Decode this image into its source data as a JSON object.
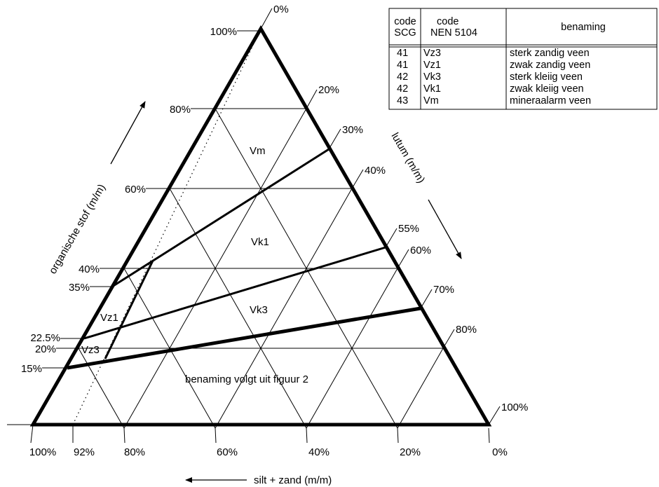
{
  "diagram": {
    "organic_axis": {
      "title": "organische stof (m/m)",
      "ticks": [
        "100%",
        "80%",
        "60%",
        "40%",
        "35%",
        "22.5%",
        "20%",
        "15%"
      ]
    },
    "lutum_axis": {
      "title": "lutum (m/m)",
      "ticks": [
        "0%",
        "20%",
        "30%",
        "40%",
        "55%",
        "60%",
        "70%",
        "80%",
        "100%"
      ]
    },
    "silt_axis": {
      "title": "silt + zand (m/m)",
      "ticks": [
        "100%",
        "92%",
        "80%",
        "60%",
        "40%",
        "20%",
        "0%"
      ]
    },
    "regions": {
      "vm": "Vm",
      "vk1": "Vk1",
      "vk3": "Vk3",
      "vz1": "Vz1",
      "vz3": "Vz3",
      "rest": "benaming volgt uit figuur 2"
    }
  },
  "legend_table": {
    "headers": {
      "scg": [
        "code",
        "SCG"
      ],
      "nen": [
        "code",
        "NEN 5104"
      ],
      "name": "benaming"
    },
    "rows": [
      {
        "scg": "41",
        "nen": "Vz3",
        "name": "sterk zandig veen"
      },
      {
        "scg": "41",
        "nen": "Vz1",
        "name": "zwak zandig veen"
      },
      {
        "scg": "42",
        "nen": "Vk3",
        "name": "sterk kleiig veen"
      },
      {
        "scg": "42",
        "nen": "Vk1",
        "name": "zwak kleiig veen"
      },
      {
        "scg": "43",
        "nen": "Vm",
        "name": "mineraalarm veen"
      }
    ]
  }
}
